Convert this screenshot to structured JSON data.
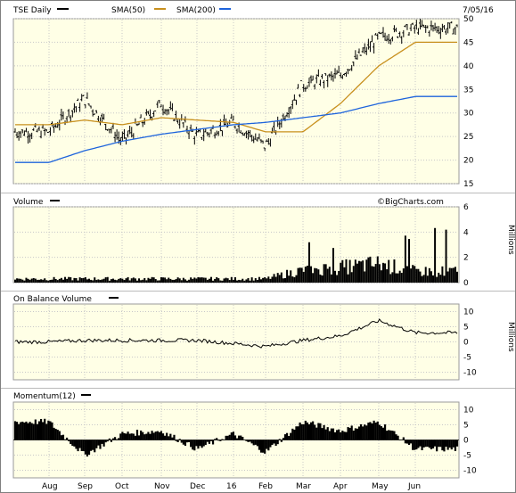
{
  "date": "7/05/16",
  "watermark": "©BigCharts.com",
  "x_axis": {
    "labels": [
      "Aug",
      "Sep",
      "Oct",
      "Nov",
      "Dec",
      "16",
      "Feb",
      "Mar",
      "Apr",
      "May",
      "Jun"
    ]
  },
  "panels": {
    "price": {
      "legend": [
        {
          "label": "TSE Daily",
          "color": "#000000"
        },
        {
          "label": "SMA(50)",
          "color": "#c8901e"
        },
        {
          "label": "SMA(200)",
          "color": "#1e64dc"
        }
      ],
      "ticks": [
        "50",
        "45",
        "40",
        "35",
        "30",
        "25",
        "20",
        "15"
      ]
    },
    "volume": {
      "title": "Volume",
      "ticks": [
        "6",
        "4",
        "2",
        "0"
      ],
      "unit": "Millions"
    },
    "obv": {
      "title": "On Balance Volume",
      "ticks": [
        "10",
        "5",
        "0",
        "-5",
        "-10"
      ],
      "unit": "Millions"
    },
    "momentum": {
      "title": "Momentum(12)",
      "ticks": [
        "10",
        "5",
        "0",
        "-5",
        "-10"
      ]
    }
  },
  "chart_data": [
    {
      "type": "line",
      "title": "TSE Daily",
      "x": [
        "Aug",
        "Sep",
        "Oct",
        "Nov",
        "Dec",
        "16",
        "Feb",
        "Mar",
        "Apr",
        "May",
        "Jun"
      ],
      "ylim": [
        15,
        50
      ],
      "series": [
        {
          "name": "TSE Daily",
          "values": [
            26,
            33,
            24,
            32,
            25,
            28,
            23,
            36,
            38,
            46,
            48
          ]
        },
        {
          "name": "SMA(50)",
          "values": [
            27.5,
            28.5,
            27.5,
            29,
            28.5,
            28,
            26,
            26,
            32,
            40,
            45
          ]
        },
        {
          "name": "SMA(200)",
          "values": [
            19.5,
            22,
            24,
            25.5,
            26.5,
            27.5,
            28,
            29,
            30,
            32,
            33.5
          ]
        }
      ]
    },
    {
      "type": "area",
      "title": "Volume",
      "x": [
        "Aug",
        "Sep",
        "Oct",
        "Nov",
        "Dec",
        "16",
        "Feb",
        "Mar",
        "Apr",
        "May",
        "Jun"
      ],
      "ylabel": "Millions",
      "ylim": [
        0,
        6
      ],
      "series": [
        {
          "name": "Volume",
          "values": [
            0.3,
            0.3,
            0.3,
            0.3,
            0.3,
            0.3,
            0.3,
            1.0,
            1.2,
            1.5,
            0.9
          ]
        }
      ]
    },
    {
      "type": "line",
      "title": "On Balance Volume",
      "x": [
        "Aug",
        "Sep",
        "Oct",
        "Nov",
        "Dec",
        "16",
        "Feb",
        "Mar",
        "Apr",
        "May",
        "Jun"
      ],
      "ylabel": "Millions",
      "ylim": [
        -10,
        10
      ],
      "series": [
        {
          "name": "On Balance Volume",
          "values": [
            0,
            0.5,
            0.5,
            0.5,
            0.5,
            -0.5,
            -1.5,
            0.5,
            2,
            7,
            3
          ]
        }
      ]
    },
    {
      "type": "area",
      "title": "Momentum(12)",
      "x": [
        "Aug",
        "Sep",
        "Oct",
        "Nov",
        "Dec",
        "16",
        "Feb",
        "Mar",
        "Apr",
        "May",
        "Jun"
      ],
      "ylim": [
        -10,
        10
      ],
      "series": [
        {
          "name": "Momentum(12)",
          "values": [
            6,
            -5,
            2,
            3,
            -3,
            2,
            -4,
            6,
            3,
            6,
            -3
          ]
        }
      ]
    }
  ]
}
